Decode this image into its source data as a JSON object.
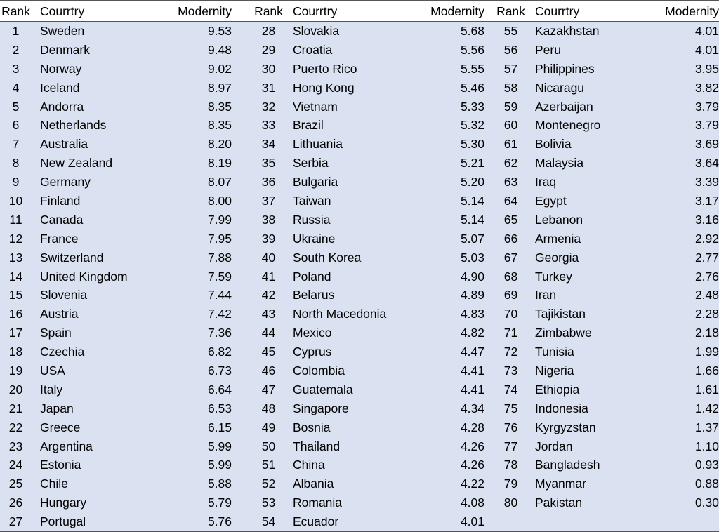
{
  "columns": {
    "rank": "Rank",
    "country": "Courrtry",
    "value": "Modernity"
  },
  "groups": [
    {
      "rows": [
        {
          "rank": "1",
          "country": "Sweden",
          "value": "9.53"
        },
        {
          "rank": "2",
          "country": "Denmark",
          "value": "9.48"
        },
        {
          "rank": "3",
          "country": "Norway",
          "value": "9.02"
        },
        {
          "rank": "4",
          "country": "Iceland",
          "value": "8.97"
        },
        {
          "rank": "5",
          "country": "Andorra",
          "value": "8.35"
        },
        {
          "rank": "6",
          "country": "Netherlands",
          "value": "8.35"
        },
        {
          "rank": "7",
          "country": "Australia",
          "value": "8.20"
        },
        {
          "rank": "8",
          "country": "New Zealand",
          "value": "8.19"
        },
        {
          "rank": "9",
          "country": "Germany",
          "value": "8.07"
        },
        {
          "rank": "10",
          "country": "Finland",
          "value": "8.00"
        },
        {
          "rank": "11",
          "country": "Canada",
          "value": "7.99"
        },
        {
          "rank": "12",
          "country": "France",
          "value": "7.95"
        },
        {
          "rank": "13",
          "country": "Switzerland",
          "value": "7.88"
        },
        {
          "rank": "14",
          "country": "United Kingdom",
          "value": "7.59"
        },
        {
          "rank": "15",
          "country": "Slovenia",
          "value": "7.44"
        },
        {
          "rank": "16",
          "country": "Austria",
          "value": "7.42"
        },
        {
          "rank": "17",
          "country": "Spain",
          "value": "7.36"
        },
        {
          "rank": "18",
          "country": "Czechia",
          "value": "6.82"
        },
        {
          "rank": "19",
          "country": "USA",
          "value": "6.73"
        },
        {
          "rank": "20",
          "country": "Italy",
          "value": "6.64"
        },
        {
          "rank": "21",
          "country": "Japan",
          "value": "6.53"
        },
        {
          "rank": "22",
          "country": "Greece",
          "value": "6.15"
        },
        {
          "rank": "23",
          "country": "Argentina",
          "value": "5.99"
        },
        {
          "rank": "24",
          "country": "Estonia",
          "value": "5.99"
        },
        {
          "rank": "25",
          "country": "Chile",
          "value": "5.88"
        },
        {
          "rank": "26",
          "country": "Hungary",
          "value": "5.79"
        },
        {
          "rank": "27",
          "country": "Portugal",
          "value": "5.76"
        }
      ]
    },
    {
      "rows": [
        {
          "rank": "28",
          "country": "Slovakia",
          "value": "5.68"
        },
        {
          "rank": "29",
          "country": "Croatia",
          "value": "5.56"
        },
        {
          "rank": "30",
          "country": "Puerto Rico",
          "value": "5.55"
        },
        {
          "rank": "31",
          "country": "Hong Kong",
          "value": "5.46"
        },
        {
          "rank": "32",
          "country": "Vietnam",
          "value": "5.33"
        },
        {
          "rank": "33",
          "country": "Brazil",
          "value": "5.32"
        },
        {
          "rank": "34",
          "country": "Lithuania",
          "value": "5.30"
        },
        {
          "rank": "35",
          "country": "Serbia",
          "value": "5.21"
        },
        {
          "rank": "36",
          "country": "Bulgaria",
          "value": "5.20"
        },
        {
          "rank": "37",
          "country": "Taiwan",
          "value": "5.14"
        },
        {
          "rank": "38",
          "country": "Russia",
          "value": "5.14"
        },
        {
          "rank": "39",
          "country": "Ukraine",
          "value": "5.07"
        },
        {
          "rank": "40",
          "country": "South Korea",
          "value": "5.03"
        },
        {
          "rank": "41",
          "country": "Poland",
          "value": "4.90"
        },
        {
          "rank": "42",
          "country": "Belarus",
          "value": "4.89"
        },
        {
          "rank": "43",
          "country": "North Macedonia",
          "value": "4.83"
        },
        {
          "rank": "44",
          "country": "Mexico",
          "value": "4.82"
        },
        {
          "rank": "45",
          "country": "Cyprus",
          "value": "4.47"
        },
        {
          "rank": "46",
          "country": "Colombia",
          "value": "4.41"
        },
        {
          "rank": "47",
          "country": "Guatemala",
          "value": "4.41"
        },
        {
          "rank": "48",
          "country": "Singapore",
          "value": "4.34"
        },
        {
          "rank": "49",
          "country": "Bosnia",
          "value": "4.28"
        },
        {
          "rank": "50",
          "country": "Thailand",
          "value": "4.26"
        },
        {
          "rank": "51",
          "country": "China",
          "value": "4.26"
        },
        {
          "rank": "52",
          "country": "Albania",
          "value": "4.22"
        },
        {
          "rank": "53",
          "country": "Romania",
          "value": "4.08"
        },
        {
          "rank": "54",
          "country": "Ecuador",
          "value": "4.01"
        }
      ]
    },
    {
      "rows": [
        {
          "rank": "55",
          "country": "Kazakhstan",
          "value": "4.01"
        },
        {
          "rank": "56",
          "country": "Peru",
          "value": "4.01"
        },
        {
          "rank": "57",
          "country": "Philippines",
          "value": "3.95"
        },
        {
          "rank": "58",
          "country": "Nicaragu",
          "value": "3.82"
        },
        {
          "rank": "59",
          "country": "Azerbaijan",
          "value": "3.79"
        },
        {
          "rank": "60",
          "country": "Montenegro",
          "value": "3.79"
        },
        {
          "rank": "61",
          "country": "Bolivia",
          "value": "3.69"
        },
        {
          "rank": "62",
          "country": "Malaysia",
          "value": "3.64"
        },
        {
          "rank": "63",
          "country": "Iraq",
          "value": "3.39"
        },
        {
          "rank": "64",
          "country": "Egypt",
          "value": "3.17"
        },
        {
          "rank": "65",
          "country": "Lebanon",
          "value": "3.16"
        },
        {
          "rank": "66",
          "country": "Armenia",
          "value": "2.92"
        },
        {
          "rank": "67",
          "country": "Georgia",
          "value": "2.77"
        },
        {
          "rank": "68",
          "country": "Turkey",
          "value": "2.76"
        },
        {
          "rank": "69",
          "country": "Iran",
          "value": "2.48"
        },
        {
          "rank": "70",
          "country": "Tajikistan",
          "value": "2.28"
        },
        {
          "rank": "71",
          "country": "Zimbabwe",
          "value": "2.18"
        },
        {
          "rank": "72",
          "country": "Tunisia",
          "value": "1.99"
        },
        {
          "rank": "73",
          "country": "Nigeria",
          "value": "1.66"
        },
        {
          "rank": "74",
          "country": "Ethiopia",
          "value": "1.61"
        },
        {
          "rank": "75",
          "country": "Indonesia",
          "value": "1.42"
        },
        {
          "rank": "76",
          "country": "Kyrgyzstan",
          "value": "1.37"
        },
        {
          "rank": "77",
          "country": "Jordan",
          "value": "1.10"
        },
        {
          "rank": "78",
          "country": "Bangladesh",
          "value": "0.93"
        },
        {
          "rank": "79",
          "country": "Myanmar",
          "value": "0.88"
        },
        {
          "rank": "80",
          "country": "Pakistan",
          "value": "0.30"
        }
      ]
    }
  ]
}
